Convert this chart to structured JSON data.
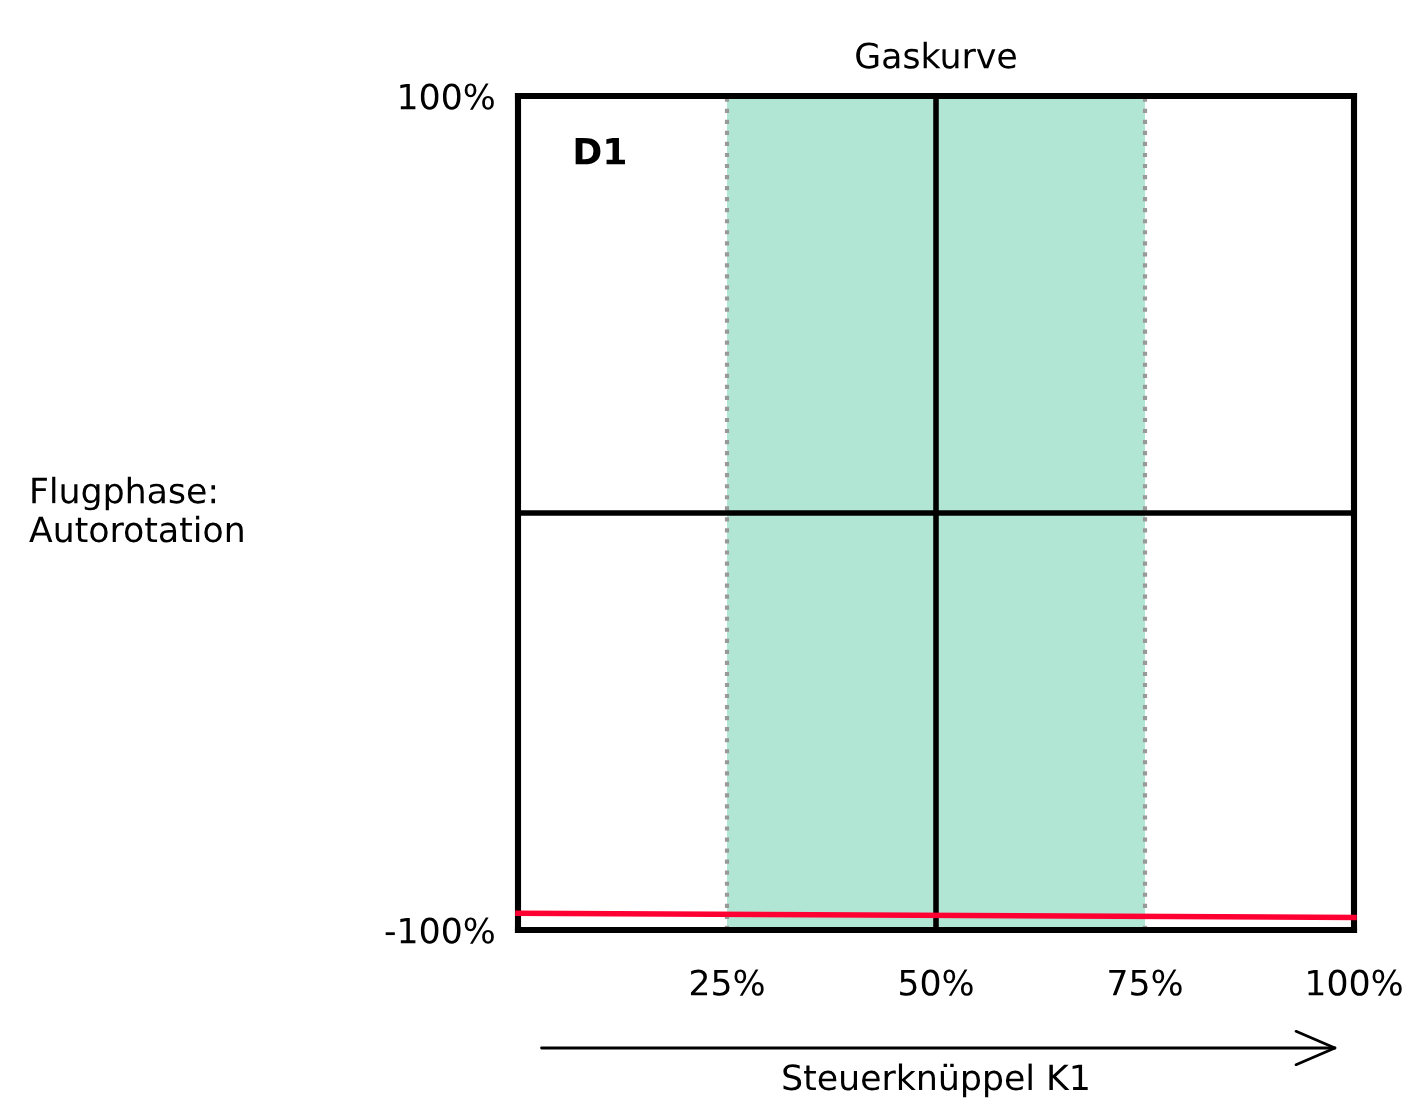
{
  "chart_data": {
    "type": "line",
    "title": "Gaskurve",
    "xlabel": "Steuerknüppel K1",
    "ylabel": "Flugphase:\nAutorotation",
    "annotations": [
      "D1"
    ],
    "x": [
      0,
      100
    ],
    "series": [
      {
        "color": "#ff0033",
        "values": [
          -96,
          -97
        ]
      }
    ],
    "xlim": [
      0,
      100
    ],
    "ylim": [
      -100,
      100
    ],
    "xticks": [
      {
        "value": 25,
        "label": "25%"
      },
      {
        "value": 50,
        "label": "50%"
      },
      {
        "value": 75,
        "label": "75%"
      },
      {
        "value": 100,
        "label": "100%"
      }
    ],
    "yticks": [
      {
        "value": -100,
        "label": "-100%"
      },
      {
        "value": 100,
        "label": "100%"
      }
    ],
    "bands": [
      {
        "axis": "x",
        "from": 25,
        "to": 75,
        "color": "#b2e6d4"
      }
    ],
    "ref_lines": [
      {
        "axis": "x",
        "value": 25,
        "color": "#999999",
        "line_style": "dotted"
      },
      {
        "axis": "x",
        "value": 75,
        "color": "#999999",
        "line_style": "dotted"
      },
      {
        "axis": "x",
        "value": 50,
        "color": "#000000",
        "line_style": "solid"
      },
      {
        "axis": "y",
        "value": 0,
        "color": "#000000",
        "line_style": "solid"
      }
    ],
    "grid": false,
    "legend": false,
    "marker": "none",
    "line_style": "solid"
  }
}
